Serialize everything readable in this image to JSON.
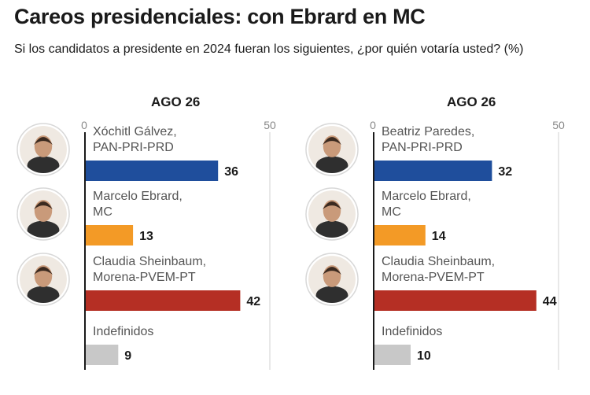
{
  "header": {
    "title": "Careos presidenciales: con Ebrard en MC",
    "subtitle": "Si los candidatos a presidente en 2024 fueran los siguientes, ¿por quién votaría usted? (%)"
  },
  "chart_data": [
    {
      "type": "bar",
      "orientation": "horizontal",
      "title": "AGO 26",
      "xlim": [
        0,
        50
      ],
      "xticks": [
        "0",
        "50"
      ],
      "categories": [
        [
          "Xóchitl Gálvez,",
          "PAN-PRI-PRD"
        ],
        [
          "Marcelo Ebrard,",
          "MC"
        ],
        [
          "Claudia Sheinbaum,",
          "Morena-PVEM-PT"
        ],
        [
          "Indefinidos"
        ]
      ],
      "values": [
        36,
        13,
        42,
        9
      ],
      "colors": [
        "#1f4e9c",
        "#f39a26",
        "#b52f24",
        "#c8c8c8"
      ],
      "avatars": [
        "candidate-photo-xochitl-galvez",
        "candidate-photo-marcelo-ebrard",
        "candidate-photo-claudia-sheinbaum",
        null
      ]
    },
    {
      "type": "bar",
      "orientation": "horizontal",
      "title": "AGO 26",
      "xlim": [
        0,
        50
      ],
      "xticks": [
        "0",
        "50"
      ],
      "categories": [
        [
          "Beatriz Paredes,",
          "PAN-PRI-PRD"
        ],
        [
          "Marcelo Ebrard,",
          "MC"
        ],
        [
          "Claudia Sheinbaum,",
          "Morena-PVEM-PT"
        ],
        [
          "Indefinidos"
        ]
      ],
      "values": [
        32,
        14,
        44,
        10
      ],
      "colors": [
        "#1f4e9c",
        "#f39a26",
        "#b52f24",
        "#c8c8c8"
      ],
      "avatars": [
        "candidate-photo-beatriz-paredes",
        "candidate-photo-marcelo-ebrard",
        "candidate-photo-claudia-sheinbaum",
        null
      ]
    }
  ]
}
